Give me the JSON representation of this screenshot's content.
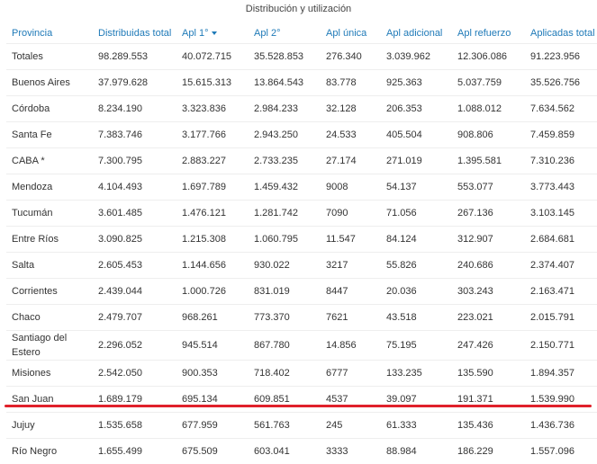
{
  "title": "Distribución y utilización",
  "table": {
    "headers": [
      "Provincia",
      "Distribuidas total",
      "Apl 1°",
      "Apl 2°",
      "Apl única",
      "Apl adicional",
      "Apl refuerzo",
      "Aplicadas total"
    ],
    "rows": [
      [
        "Totales",
        "98.289.553",
        "40.072.715",
        "35.528.853",
        "276.340",
        "3.039.962",
        "12.306.086",
        "91.223.956"
      ],
      [
        "Buenos Aires",
        "37.979.628",
        "15.615.313",
        "13.864.543",
        "83.778",
        "925.363",
        "5.037.759",
        "35.526.756"
      ],
      [
        "Córdoba",
        "8.234.190",
        "3.323.836",
        "2.984.233",
        "32.128",
        "206.353",
        "1.088.012",
        "7.634.562"
      ],
      [
        "Santa Fe",
        "7.383.746",
        "3.177.766",
        "2.943.250",
        "24.533",
        "405.504",
        "908.806",
        "7.459.859"
      ],
      [
        "CABA *",
        "7.300.795",
        "2.883.227",
        "2.733.235",
        "27.174",
        "271.019",
        "1.395.581",
        "7.310.236"
      ],
      [
        "Mendoza",
        "4.104.493",
        "1.697.789",
        "1.459.432",
        "9008",
        "54.137",
        "553.077",
        "3.773.443"
      ],
      [
        "Tucumán",
        "3.601.485",
        "1.476.121",
        "1.281.742",
        "7090",
        "71.056",
        "267.136",
        "3.103.145"
      ],
      [
        "Entre Ríos",
        "3.090.825",
        "1.215.308",
        "1.060.795",
        "11.547",
        "84.124",
        "312.907",
        "2.684.681"
      ],
      [
        "Salta",
        "2.605.453",
        "1.144.656",
        "930.022",
        "3217",
        "55.826",
        "240.686",
        "2.374.407"
      ],
      [
        "Corrientes",
        "2.439.044",
        "1.000.726",
        "831.019",
        "8447",
        "20.036",
        "303.243",
        "2.163.471"
      ],
      [
        "Chaco",
        "2.479.707",
        "968.261",
        "773.370",
        "7621",
        "43.518",
        "223.021",
        "2.015.791"
      ],
      [
        "Santiago del Estero",
        "2.296.052",
        "945.514",
        "867.780",
        "14.856",
        "75.195",
        "247.426",
        "2.150.771"
      ],
      [
        "Misiones",
        "2.542.050",
        "900.353",
        "718.402",
        "6777",
        "133.235",
        "135.590",
        "1.894.357"
      ],
      [
        "San Juan",
        "1.689.179",
        "695.134",
        "609.851",
        "4537",
        "39.097",
        "191.371",
        "1.539.990"
      ],
      [
        "Jujuy",
        "1.535.658",
        "677.959",
        "561.763",
        "245",
        "61.333",
        "135.436",
        "1.436.736"
      ],
      [
        "Río Negro",
        "1.655.499",
        "675.509",
        "603.041",
        "3333",
        "88.984",
        "186.229",
        "1.557.096"
      ]
    ]
  }
}
